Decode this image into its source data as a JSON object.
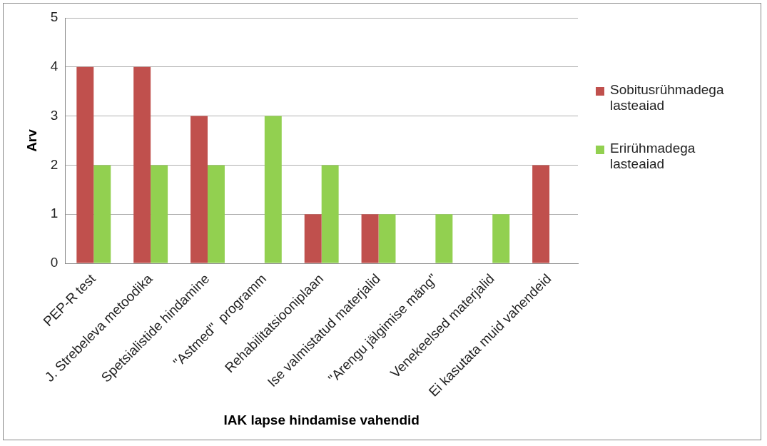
{
  "chart_data": {
    "type": "bar",
    "xlabel": "IAK lapse hindamise vahendid",
    "ylabel": "Arv",
    "categories": [
      "PEP-R test",
      "J. Strebeleva metoodika",
      "Spetsialistide hindamine",
      "\"Astmed\"  programm",
      "Rehabilitatsiooniplaan",
      "Ise valmistatud materjalid",
      "\"Arengu jälgimise mäng\"",
      "Venekeelsed materjalid",
      "Ei kasutata muid vahendeid"
    ],
    "series": [
      {
        "name": "Sobitusrühmadega lasteaiad",
        "color": "#c0504d",
        "values": [
          4,
          4,
          3,
          0,
          1,
          1,
          0,
          0,
          2
        ]
      },
      {
        "name": "Erirühmadega lasteaiad",
        "color": "#92d050",
        "values": [
          2,
          2,
          2,
          3,
          2,
          1,
          1,
          1,
          0
        ]
      }
    ],
    "ylim": [
      0,
      5
    ],
    "yticks": [
      0,
      1,
      2,
      3,
      4,
      5
    ],
    "grid": "y",
    "legend": "right"
  }
}
